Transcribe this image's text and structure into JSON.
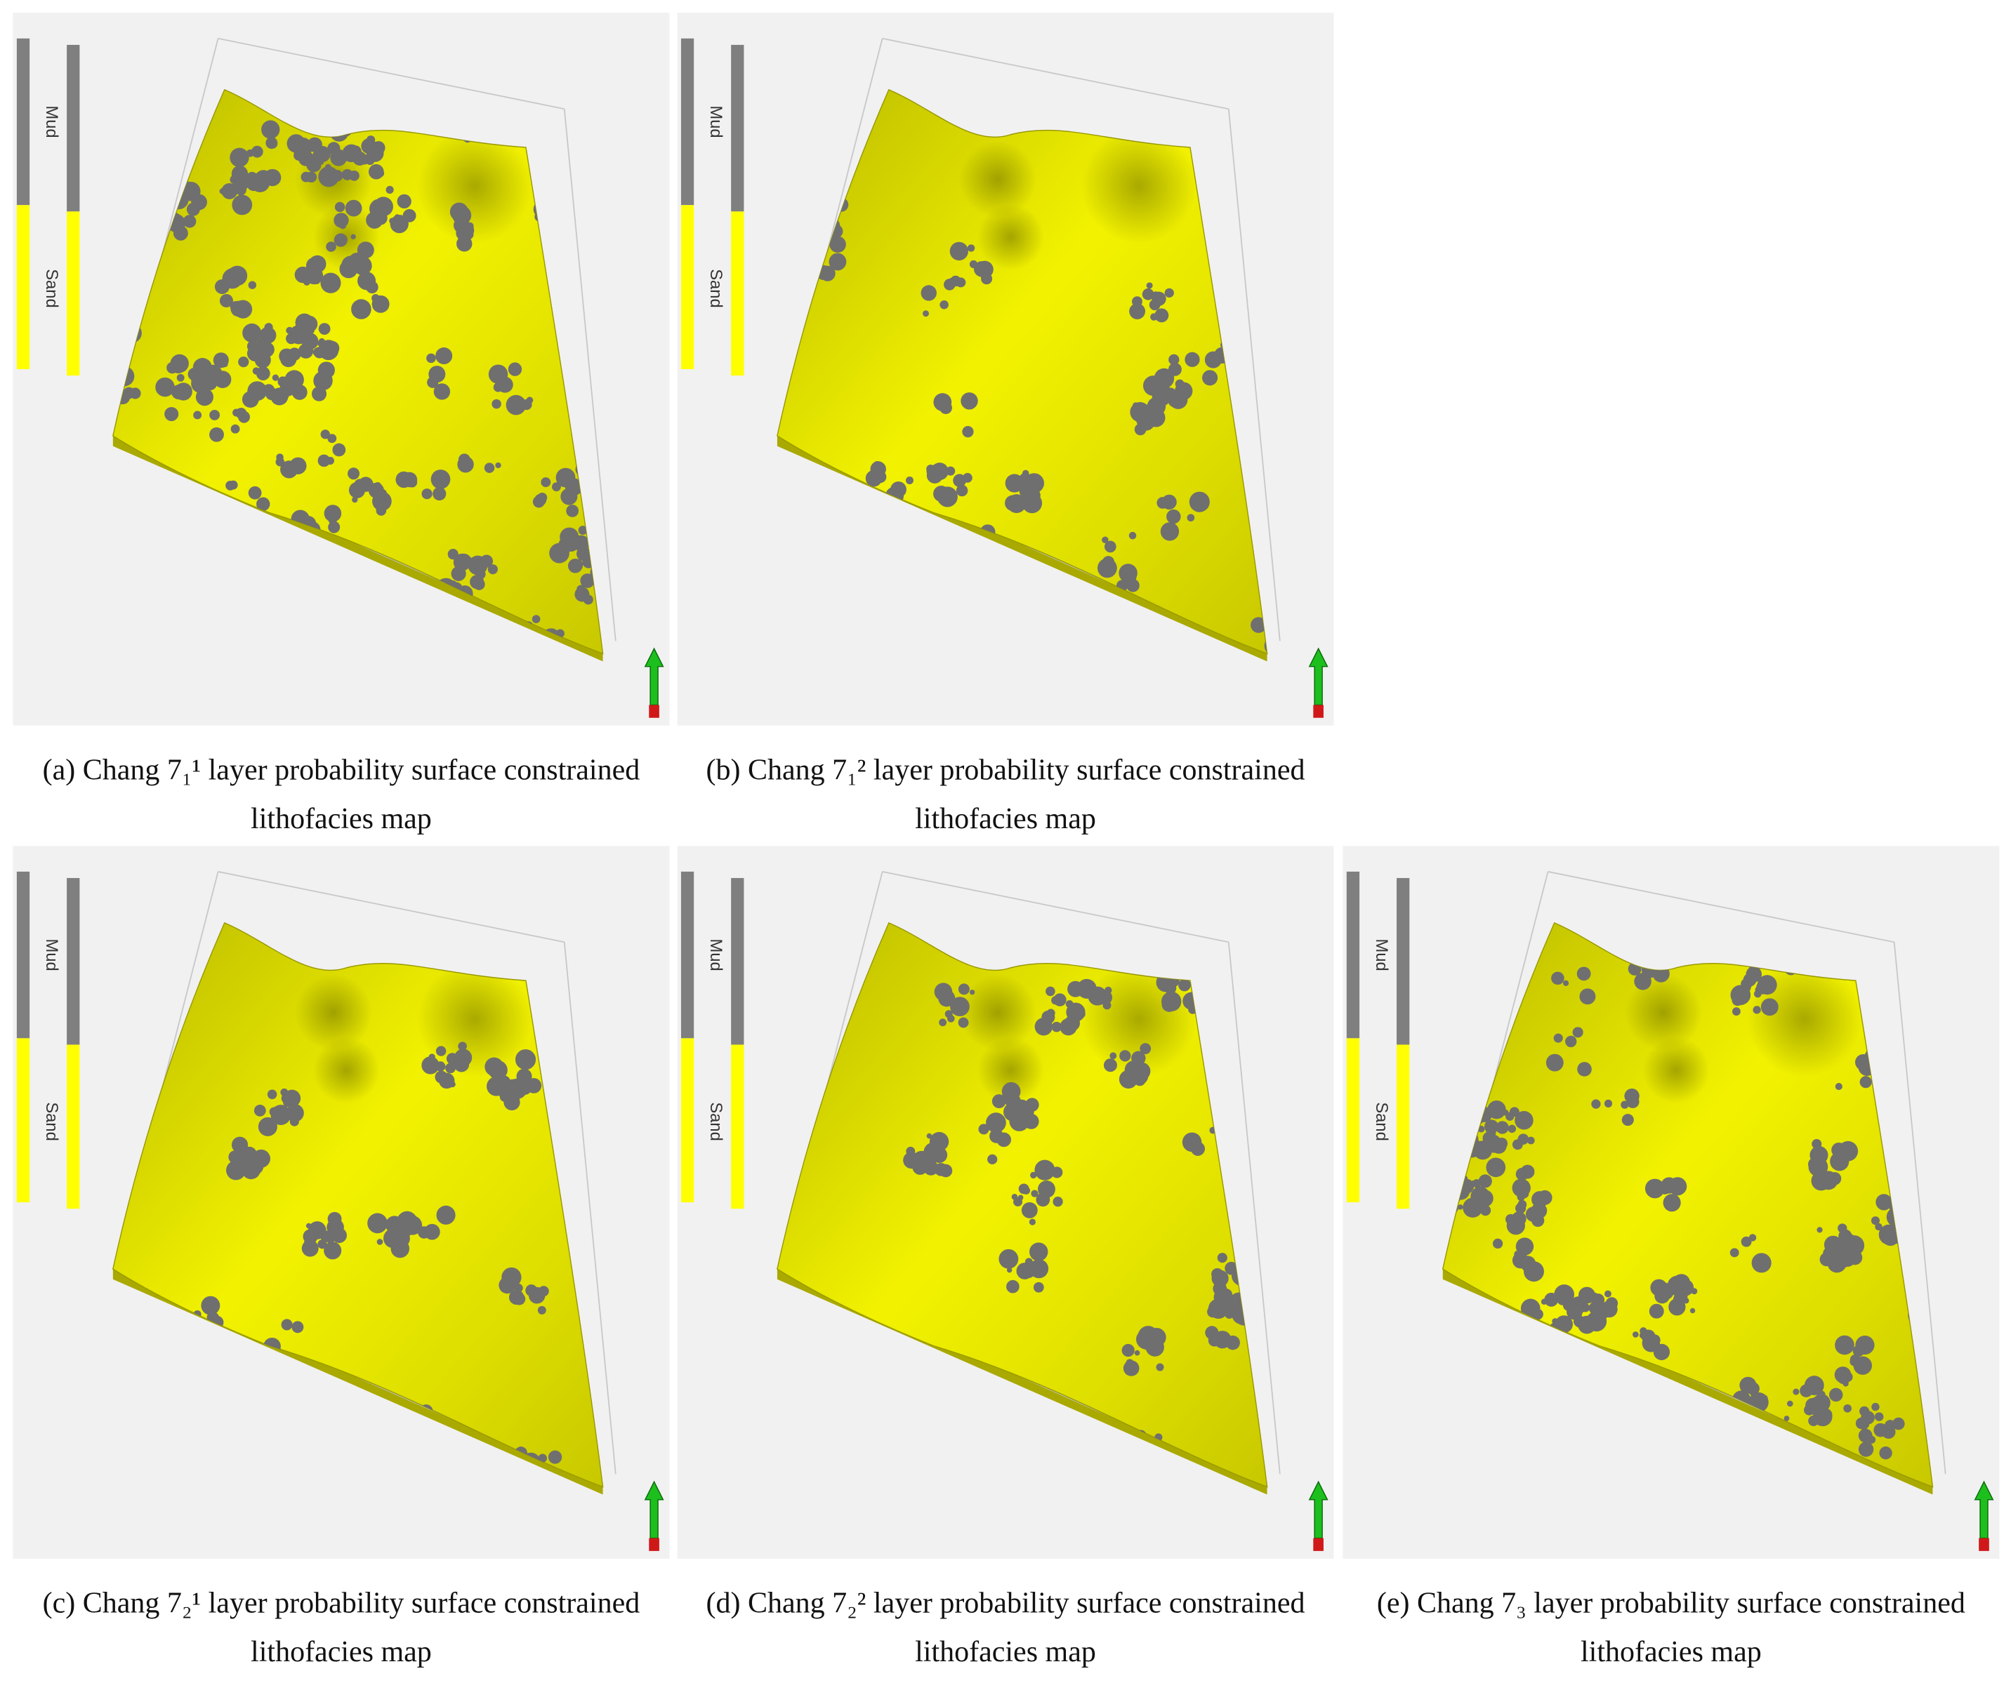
{
  "panels": [
    {
      "legend": [
        "Mud",
        "Sand"
      ],
      "caption": [
        "(a) Chang 7₁¹ layer probability surface constrained",
        "lithofacies map"
      ]
    },
    {
      "legend": [
        "Mud",
        "Sand"
      ],
      "caption": [
        "(b) Chang 7₁² layer probability surface constrained",
        "lithofacies map"
      ]
    },
    {
      "legend": [
        "Mud",
        "Sand"
      ],
      "caption": [
        "(c) Chang 7₂¹ layer probability surface constrained",
        "lithofacies map"
      ]
    },
    {
      "legend": [
        "Mud",
        "Sand"
      ],
      "caption": [
        "(d) Chang 7₂² layer probability surface constrained",
        "lithofacies map"
      ]
    },
    {
      "legend": [
        "Mud",
        "Sand"
      ],
      "caption": [
        "(e) Chang 7₃ layer probability surface constrained",
        "lithofacies map"
      ]
    }
  ]
}
